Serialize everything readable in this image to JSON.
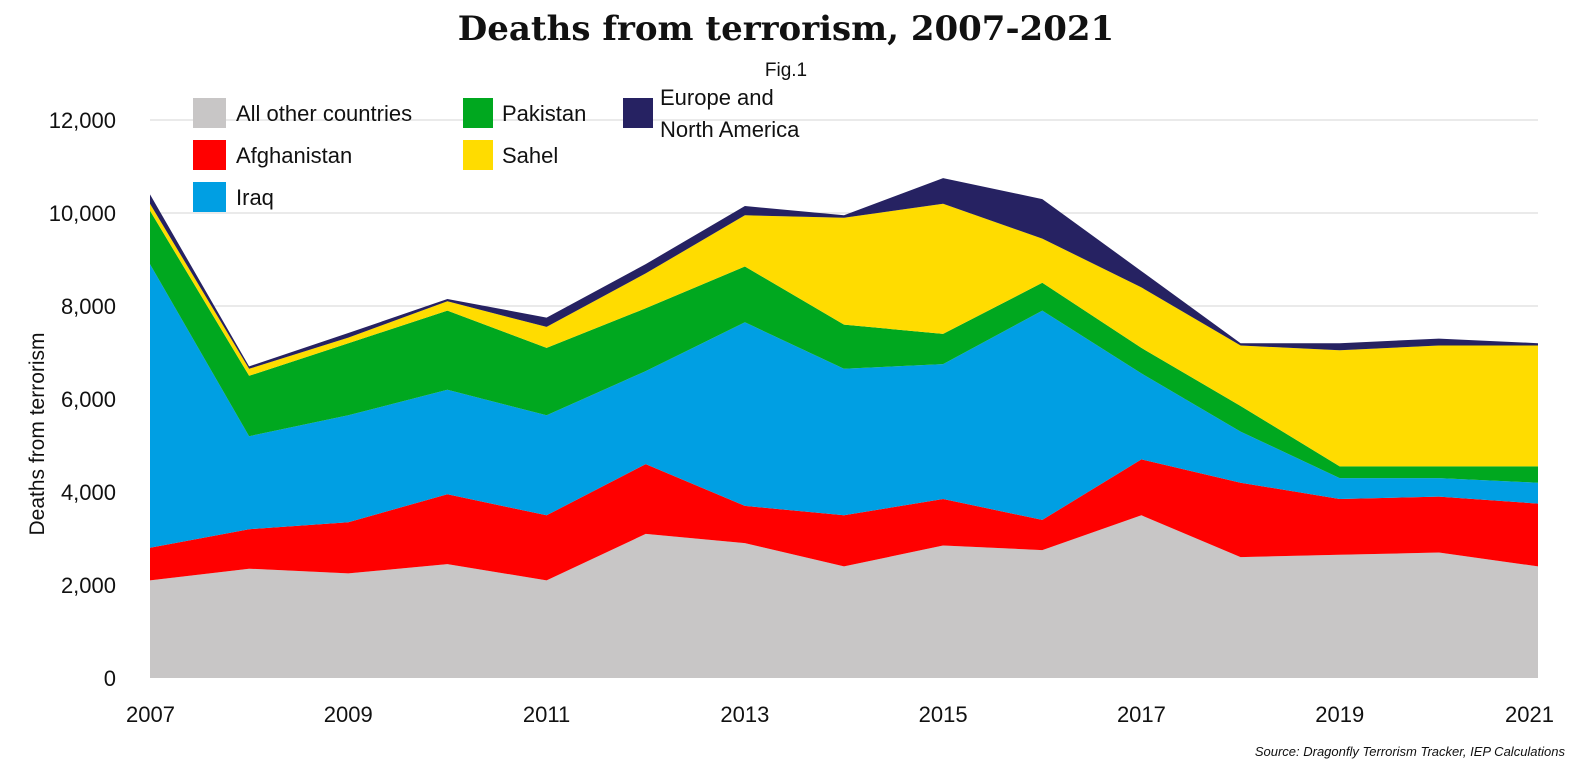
{
  "chart_data": {
    "type": "area",
    "stacked": true,
    "title": "Deaths from terrorism, 2007-2021",
    "subtitle": "Fig.1",
    "ylabel": "Deaths from terrorism",
    "xlabel": "",
    "source": "Source: Dragonfly Terrorism Tracker, IEP Calculations",
    "x": [
      2007,
      2008,
      2009,
      2010,
      2011,
      2012,
      2013,
      2014,
      2015,
      2016,
      2017,
      2018,
      2019,
      2020,
      2021
    ],
    "xticks": [
      "2007",
      "2009",
      "2011",
      "2013",
      "2015",
      "2017",
      "2019",
      "2021"
    ],
    "yticks": [
      "0",
      "2,000",
      "4,000",
      "6,000",
      "8,000",
      "10,000",
      "12,000"
    ],
    "ylim": [
      0,
      12000
    ],
    "grid": true,
    "legend_position": "top-left",
    "series": [
      {
        "name": "All other countries",
        "color": "#c8c6c6",
        "values": [
          2100,
          2350,
          2250,
          2450,
          2100,
          3100,
          2900,
          2400,
          2850,
          2750,
          3500,
          2600,
          2650,
          2700,
          2400
        ]
      },
      {
        "name": "Afghanistan",
        "color": "#ff0000",
        "values": [
          700,
          850,
          1100,
          1500,
          1400,
          1500,
          800,
          1100,
          1000,
          650,
          1200,
          1600,
          1200,
          1200,
          1350
        ]
      },
      {
        "name": "Iraq",
        "color": "#009fe3",
        "values": [
          6100,
          2000,
          2300,
          2250,
          2150,
          2000,
          3950,
          3150,
          2900,
          4500,
          1850,
          1100,
          450,
          400,
          450
        ]
      },
      {
        "name": "Pakistan",
        "color": "#00a81f",
        "values": [
          1150,
          1300,
          1550,
          1700,
          1450,
          1350,
          1200,
          950,
          650,
          600,
          550,
          550,
          250,
          250,
          350
        ]
      },
      {
        "name": "Sahel",
        "color": "#ffdc00",
        "values": [
          150,
          150,
          120,
          200,
          450,
          750,
          1100,
          2300,
          2800,
          950,
          1300,
          1300,
          2500,
          2600,
          2600
        ]
      },
      {
        "name": "Europe and North America",
        "color": "#262262",
        "values": [
          200,
          50,
          100,
          50,
          200,
          200,
          200,
          50,
          550,
          850,
          350,
          50,
          150,
          150,
          50
        ]
      }
    ],
    "legend": [
      [
        "All other countries",
        "Afghanistan",
        "Iraq"
      ],
      [
        "Pakistan",
        "Sahel"
      ],
      [
        "Europe and",
        "North America"
      ]
    ]
  }
}
